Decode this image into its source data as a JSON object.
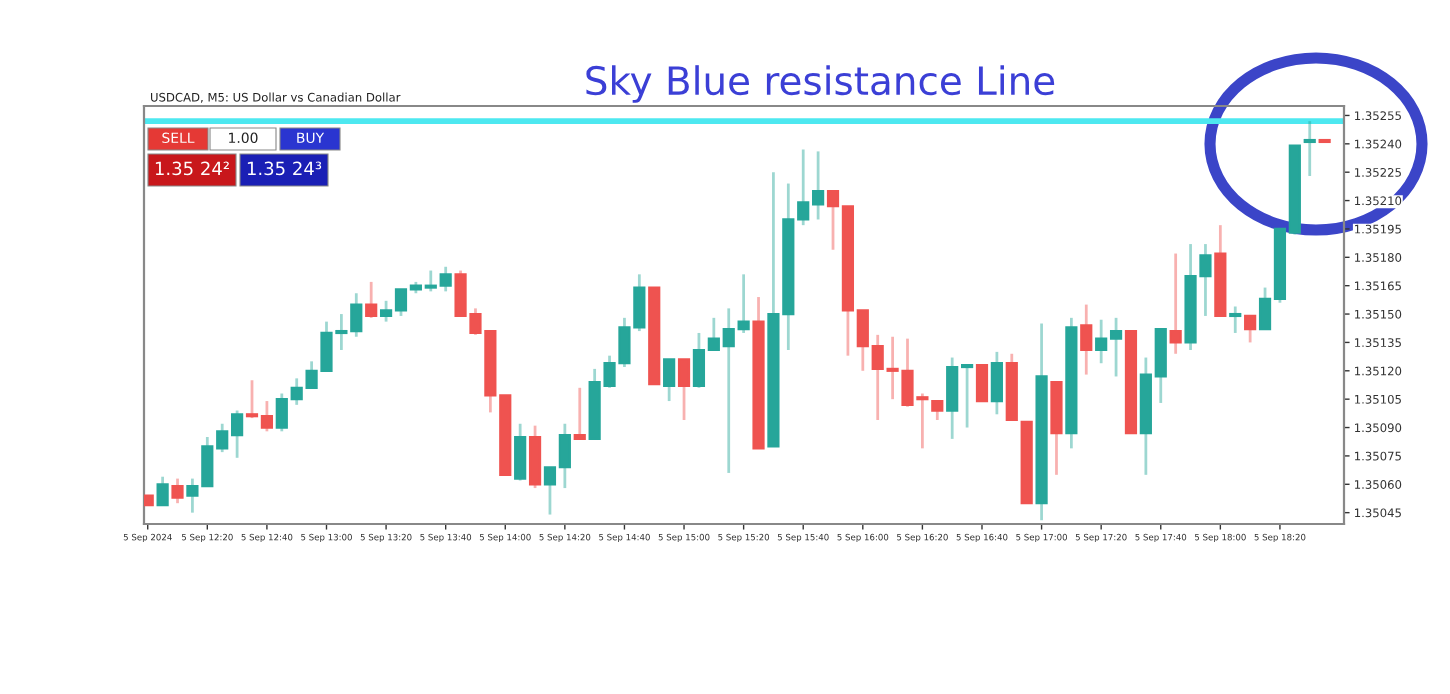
{
  "chart_data": {
    "type": "candlestick",
    "title": "Sky Blue resistance Line",
    "annotations": [
      "USDCAD, M5: US Dollar vs Canadian Dollar",
      "SELL",
      "1.00",
      "BUY",
      "1.35 24²",
      "1.35 24³"
    ],
    "categories": [
      "5 Sep 2024",
      null,
      null,
      null,
      "5 Sep 12:20",
      null,
      null,
      null,
      "5 Sep 12:40",
      null,
      null,
      null,
      "5 Sep 13:00",
      null,
      null,
      null,
      "5 Sep 13:20",
      null,
      null,
      null,
      "5 Sep 13:40",
      null,
      null,
      null,
      "5 Sep 14:00",
      null,
      null,
      null,
      "5 Sep 14:20",
      null,
      null,
      null,
      "5 Sep 14:40",
      null,
      null,
      null,
      "5 Sep 15:00",
      null,
      null,
      null,
      "5 Sep 15:20",
      null,
      null,
      null,
      "5 Sep 15:40",
      null,
      null,
      null,
      "5 Sep 16:00",
      null,
      null,
      null,
      "5 Sep 16:20",
      null,
      null,
      null,
      "5 Sep 16:40",
      null,
      null,
      null,
      "5 Sep 17:00",
      null,
      null,
      null,
      "5 Sep 17:20",
      null,
      null,
      null,
      "5 Sep 17:40",
      null,
      null,
      null,
      "5 Sep 18:00",
      null,
      null,
      null,
      "5 Sep 18:20",
      null,
      null,
      null
    ],
    "ohlc": [
      [
        1.35054,
        1.35054,
        1.35049,
        1.35049
      ],
      [
        1.35049,
        1.35064,
        1.35049,
        1.3506
      ],
      [
        1.35059,
        1.35063,
        1.3505,
        1.35053
      ],
      [
        1.35054,
        1.35063,
        1.35045,
        1.35059
      ],
      [
        1.35059,
        1.35085,
        1.35059,
        1.3508
      ],
      [
        1.35079,
        1.35092,
        1.35077,
        1.35088
      ],
      [
        1.35086,
        1.35099,
        1.35074,
        1.35097
      ],
      [
        1.35097,
        1.35115,
        1.35095,
        1.35096
      ],
      [
        1.35096,
        1.35104,
        1.35088,
        1.3509
      ],
      [
        1.3509,
        1.35108,
        1.35088,
        1.35105
      ],
      [
        1.35105,
        1.35116,
        1.35102,
        1.35111
      ],
      [
        1.35111,
        1.35125,
        1.35111,
        1.3512
      ],
      [
        1.3512,
        1.35146,
        1.3512,
        1.3514
      ],
      [
        1.3514,
        1.3515,
        1.35131,
        1.35141
      ],
      [
        1.35141,
        1.35161,
        1.35138,
        1.35155
      ],
      [
        1.35155,
        1.35167,
        1.35148,
        1.35149
      ],
      [
        1.35149,
        1.35157,
        1.35146,
        1.35152
      ],
      [
        1.35152,
        1.35163,
        1.35149,
        1.35163
      ],
      [
        1.35163,
        1.35167,
        1.35161,
        1.35165
      ],
      [
        1.35164,
        1.35173,
        1.35162,
        1.35165
      ],
      [
        1.35165,
        1.35175,
        1.35162,
        1.35171
      ],
      [
        1.35171,
        1.35173,
        1.35149,
        1.35149
      ],
      [
        1.3515,
        1.35153,
        1.35139,
        1.3514
      ],
      [
        1.35141,
        1.35141,
        1.35098,
        1.35107
      ],
      [
        1.35107,
        1.35107,
        1.35065,
        1.35065
      ],
      [
        1.35063,
        1.35092,
        1.35062,
        1.35085
      ],
      [
        1.35085,
        1.35091,
        1.35058,
        1.3506
      ],
      [
        1.3506,
        1.35069,
        1.35044,
        1.35069
      ],
      [
        1.35069,
        1.35092,
        1.35058,
        1.35086
      ],
      [
        1.35086,
        1.35111,
        1.35084,
        1.35084
      ],
      [
        1.35084,
        1.35121,
        1.35084,
        1.35114
      ],
      [
        1.35112,
        1.35128,
        1.35111,
        1.35124
      ],
      [
        1.35124,
        1.35148,
        1.35122,
        1.35143
      ],
      [
        1.35143,
        1.35171,
        1.35141,
        1.35164
      ],
      [
        1.35164,
        1.35164,
        1.35113,
        1.35113
      ],
      [
        1.35112,
        1.35126,
        1.35104,
        1.35126
      ],
      [
        1.35126,
        1.35126,
        1.35094,
        1.35112
      ],
      [
        1.35112,
        1.3514,
        1.35111,
        1.35131
      ],
      [
        1.35131,
        1.35148,
        1.35131,
        1.35137
      ],
      [
        1.35133,
        1.35153,
        1.35066,
        1.35142
      ],
      [
        1.35142,
        1.35171,
        1.3514,
        1.35146
      ],
      [
        1.35146,
        1.35159,
        1.35079,
        1.35079
      ],
      [
        1.3508,
        1.35225,
        1.3508,
        1.3515
      ],
      [
        1.3515,
        1.35219,
        1.35131,
        1.352
      ],
      [
        1.352,
        1.35237,
        1.35197,
        1.35209
      ],
      [
        1.35208,
        1.35236,
        1.352,
        1.35215
      ],
      [
        1.35215,
        1.35215,
        1.35184,
        1.35207
      ],
      [
        1.35207,
        1.35207,
        1.35128,
        1.35152
      ],
      [
        1.35152,
        1.35152,
        1.3512,
        1.35133
      ],
      [
        1.35133,
        1.35139,
        1.35094,
        1.35121
      ],
      [
        1.35121,
        1.35138,
        1.35105,
        1.3512
      ],
      [
        1.3512,
        1.35137,
        1.35101,
        1.35102
      ],
      [
        1.35106,
        1.35108,
        1.35079,
        1.35105
      ],
      [
        1.35104,
        1.35104,
        1.35094,
        1.35099
      ],
      [
        1.35099,
        1.35127,
        1.35084,
        1.35122
      ],
      [
        1.35122,
        1.35123,
        1.3509,
        1.35123
      ],
      [
        1.35123,
        1.35123,
        1.35104,
        1.35104
      ],
      [
        1.35104,
        1.3513,
        1.35097,
        1.35124
      ],
      [
        1.35124,
        1.35129,
        1.35094,
        1.35094
      ],
      [
        1.35093,
        1.35093,
        1.3505,
        1.3505
      ],
      [
        1.3505,
        1.35145,
        1.35041,
        1.35117
      ],
      [
        1.35114,
        1.35114,
        1.35065,
        1.35087
      ],
      [
        1.35087,
        1.35148,
        1.35079,
        1.35143
      ],
      [
        1.35144,
        1.35155,
        1.35118,
        1.35131
      ],
      [
        1.35131,
        1.35147,
        1.35124,
        1.35137
      ],
      [
        1.35137,
        1.35148,
        1.35117,
        1.35141
      ],
      [
        1.35141,
        1.35141,
        1.35087,
        1.35087
      ],
      [
        1.35087,
        1.35127,
        1.35065,
        1.35118
      ],
      [
        1.35117,
        1.35142,
        1.35103,
        1.35142
      ],
      [
        1.35141,
        1.35182,
        1.35129,
        1.35135
      ],
      [
        1.35135,
        1.35187,
        1.35131,
        1.3517
      ],
      [
        1.3517,
        1.35187,
        1.35149,
        1.35181
      ],
      [
        1.35182,
        1.35197,
        1.35149,
        1.35149
      ],
      [
        1.35149,
        1.35154,
        1.3514,
        1.3515
      ],
      [
        1.35149,
        1.35149,
        1.35135,
        1.35142
      ],
      [
        1.35142,
        1.35164,
        1.35142,
        1.35158
      ],
      [
        1.35158,
        1.35195,
        1.35156,
        1.35195
      ],
      [
        1.35193,
        1.35239,
        1.35192,
        1.35239
      ],
      [
        1.35241,
        1.35252,
        1.35223,
        1.35242
      ],
      [
        1.35242,
        1.35242,
        1.35241,
        1.35241
      ]
    ],
    "colors": [
      "#ef5350",
      "#26a69a",
      "#ef5350",
      "#26a69a",
      "#26a69a",
      "#26a69a",
      "#26a69a",
      "#ef5350",
      "#ef5350",
      "#26a69a",
      "#26a69a",
      "#26a69a",
      "#26a69a",
      "#26a69a",
      "#26a69a",
      "#ef5350",
      "#26a69a",
      "#26a69a",
      "#26a69a",
      "#26a69a",
      "#26a69a",
      "#ef5350",
      "#ef5350",
      "#ef5350",
      "#ef5350",
      "#26a69a",
      "#ef5350",
      "#26a69a",
      "#26a69a",
      "#ef5350",
      "#26a69a",
      "#26a69a",
      "#26a69a",
      "#26a69a",
      "#ef5350",
      "#26a69a",
      "#ef5350",
      "#26a69a",
      "#26a69a",
      "#26a69a",
      "#26a69a",
      "#ef5350",
      "#26a69a",
      "#26a69a",
      "#26a69a",
      "#26a69a",
      "#ef5350",
      "#ef5350",
      "#ef5350",
      "#ef5350",
      "#ef5350",
      "#ef5350",
      "#ef5350",
      "#ef5350",
      "#26a69a",
      "#26a69a",
      "#ef5350",
      "#26a69a",
      "#ef5350",
      "#ef5350",
      "#26a69a",
      "#ef5350",
      "#26a69a",
      "#ef5350",
      "#26a69a",
      "#26a69a",
      "#ef5350",
      "#26a69a",
      "#26a69a",
      "#ef5350",
      "#26a69a",
      "#26a69a",
      "#ef5350",
      "#26a69a",
      "#ef5350",
      "#26a69a",
      "#26a69a",
      "#26a69a",
      "#26a69a",
      "#ef5350"
    ],
    "ylim": [
      1.35039,
      1.3526
    ],
    "yticks": [
      {
        "value": 1.35045,
        "label": "1.35045"
      },
      {
        "value": 1.3506,
        "label": "1.35060"
      },
      {
        "value": 1.35075,
        "label": "1.35075"
      },
      {
        "value": 1.3509,
        "label": "1.35090"
      },
      {
        "value": 1.35105,
        "label": "1.35105"
      },
      {
        "value": 1.3512,
        "label": "1.35120"
      },
      {
        "value": 1.35135,
        "label": "1.35135"
      },
      {
        "value": 1.3515,
        "label": "1.35150"
      },
      {
        "value": 1.35165,
        "label": "1.35165"
      },
      {
        "value": 1.3518,
        "label": "1.35180"
      },
      {
        "value": 1.35195,
        "label": "1.35195"
      },
      {
        "value": 1.3521,
        "label": "1.35210"
      },
      {
        "value": 1.35225,
        "label": "1.35225"
      },
      {
        "value": 1.3524,
        "label": "1.35240"
      },
      {
        "value": 1.35255,
        "label": "1.35255"
      }
    ],
    "ref_lines": [
      {
        "axis": "y",
        "value": 1.35252,
        "color": "#4de8f0"
      }
    ],
    "grid": false,
    "legend": false
  }
}
